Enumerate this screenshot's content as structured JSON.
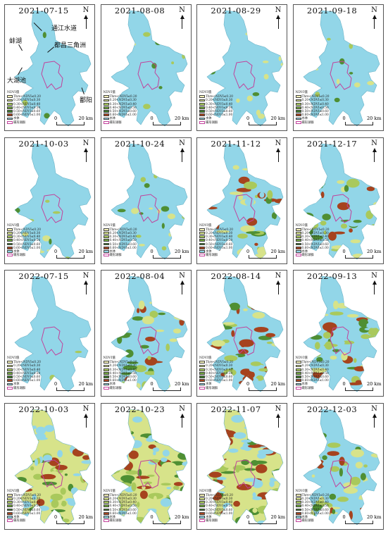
{
  "figure": {
    "panels": [
      {
        "date": "2021-07-15",
        "veg": 0
      },
      {
        "date": "2021-08-08",
        "veg": 1
      },
      {
        "date": "2021-08-29",
        "veg": 1
      },
      {
        "date": "2021-09-18",
        "veg": 1
      },
      {
        "date": "2021-10-03",
        "veg": 1
      },
      {
        "date": "2021-10-24",
        "veg": 2
      },
      {
        "date": "2021-11-12",
        "veg": 3
      },
      {
        "date": "2021-12-17",
        "veg": 3
      },
      {
        "date": "2022-07-15",
        "veg": 0
      },
      {
        "date": "2022-08-04",
        "veg": 3
      },
      {
        "date": "2022-08-14",
        "veg": 4
      },
      {
        "date": "2022-09-13",
        "veg": 4
      },
      {
        "date": "2022-10-03",
        "veg": 5
      },
      {
        "date": "2022-10-23",
        "veg": 5
      },
      {
        "date": "2022-11-07",
        "veg": 5
      },
      {
        "date": "2022-12-03",
        "veg": 4
      }
    ],
    "north_label": "N",
    "scale": {
      "start": "0",
      "end": "20 km"
    },
    "legend": {
      "title": "NDVI值",
      "items": [
        {
          "label": "Thre<NDVI≤0.20",
          "color": "#f3efb6"
        },
        {
          "label": "0.20<NDVI≤0.30",
          "color": "#d7e38a"
        },
        {
          "label": "0.30<NDVI≤0.40",
          "color": "#a9c95c"
        },
        {
          "label": "0.40<NDVI≤0.50",
          "color": "#6fa33c"
        },
        {
          "label": "0.50<NDVI≤0.60",
          "color": "#3d7a2a"
        },
        {
          "label": "0.60<NDVI≤1.00",
          "color": "#a6431e"
        },
        {
          "label": "水体",
          "color": "#92d6e8"
        },
        {
          "label": "碟形湖群",
          "color": "#c2419b"
        }
      ]
    },
    "annotations": [
      "通江水道",
      "蚌湖",
      "都昌三角洲",
      "大湖池",
      "鄱阳"
    ],
    "colors": {
      "water": "#92d6e8",
      "boundary": "#c2419b",
      "veg_light": "#d7e38a",
      "veg_dark": "#a6431e",
      "veg_green": "#4f8f33"
    }
  }
}
